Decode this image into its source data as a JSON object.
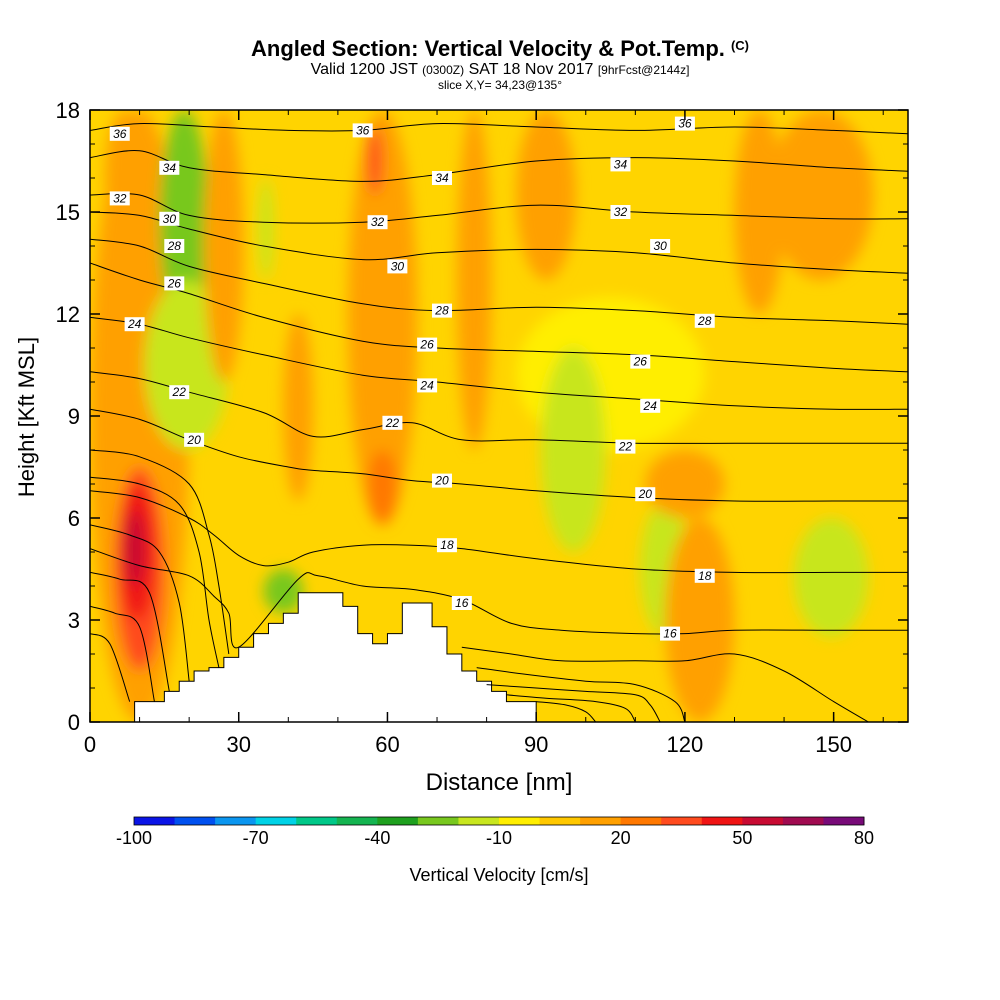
{
  "chart_data": {
    "type": "heatmap",
    "title": "Angled Section: Vertical Velocity & Pot.Temp.",
    "title_mark": "(C)",
    "subtitle_parts": [
      "Valid 1200 JST",
      "(0300Z)",
      "SAT 18 Nov 2017",
      "[9hrFcst@2144z]"
    ],
    "slice": "slice X,Y= 34,23@135°",
    "xlabel": "Distance [nm]",
    "ylabel": "Height [Kft MSL]",
    "xlim": [
      0,
      165
    ],
    "ylim": [
      0,
      18
    ],
    "xticks": [
      "0",
      "30",
      "60",
      "90",
      "120",
      "150"
    ],
    "yticks": [
      "0",
      "3",
      "6",
      "9",
      "12",
      "15",
      "18"
    ],
    "colorbar": {
      "label": "Vertical Velocity [cm/s]",
      "tick_labels": [
        "-100",
        "-70",
        "-40",
        "-10",
        "20",
        "50",
        "80"
      ],
      "colors": [
        "#0a14e6",
        "#0050f0",
        "#0a96f0",
        "#00d2e6",
        "#00c888",
        "#14b450",
        "#1ea01e",
        "#78c81e",
        "#c8e61e",
        "#ffee00",
        "#ffc800",
        "#ffa000",
        "#ff7800",
        "#ff4b1e",
        "#f01414",
        "#c80a32",
        "#a00a50",
        "#780a78"
      ],
      "cbar_ticks": [
        -100,
        -70,
        -40,
        -10,
        20,
        50,
        80
      ]
    },
    "background_color": "#ffd400",
    "velocity_regions": [
      {
        "value": 10,
        "x": [
          0,
          20
        ],
        "y": [
          0,
          18
        ]
      },
      {
        "value": 15,
        "x": [
          2,
          18
        ],
        "y": [
          1,
          9
        ]
      },
      {
        "value": 30,
        "x": [
          5,
          15
        ],
        "y": [
          1.5,
          7.5
        ]
      },
      {
        "value": 45,
        "x": [
          6,
          13
        ],
        "y": [
          3,
          7
        ]
      },
      {
        "value": 55,
        "x": [
          7,
          11
        ],
        "y": [
          4,
          6.2
        ]
      },
      {
        "value": 15,
        "x": [
          3,
          11
        ],
        "y": [
          14,
          18
        ]
      },
      {
        "value": -30,
        "x": [
          14,
          24
        ],
        "y": [
          11.5,
          18
        ]
      },
      {
        "value": -15,
        "x": [
          11,
          28
        ],
        "y": [
          8,
          13
        ]
      },
      {
        "value": -15,
        "x": [
          34,
          37
        ],
        "y": [
          13,
          16
        ]
      },
      {
        "value": -30,
        "x": [
          35,
          43
        ],
        "y": [
          3.2,
          4.5
        ]
      },
      {
        "value": 10,
        "x": [
          23,
          31
        ],
        "y": [
          10,
          18
        ]
      },
      {
        "value": 15,
        "x": [
          39,
          45
        ],
        "y": [
          6.5,
          12
        ]
      },
      {
        "value": 15,
        "x": [
          52,
          66
        ],
        "y": [
          5.8,
          18
        ]
      },
      {
        "value": 25,
        "x": [
          56,
          62
        ],
        "y": [
          5.8,
          8
        ]
      },
      {
        "value": 30,
        "x": [
          56,
          59
        ],
        "y": [
          15.5,
          17.5
        ]
      },
      {
        "value": 10,
        "x": [
          74,
          81
        ],
        "y": [
          8,
          18
        ]
      },
      {
        "value": -5,
        "x": [
          86,
          124
        ],
        "y": [
          8,
          12.5
        ]
      },
      {
        "value": -15,
        "x": [
          91,
          104
        ],
        "y": [
          5,
          11
        ]
      },
      {
        "value": -15,
        "x": [
          111,
          121
        ],
        "y": [
          2.5,
          6.5
        ]
      },
      {
        "value": -15,
        "x": [
          142,
          157
        ],
        "y": [
          2.5,
          6
        ]
      },
      {
        "value": 10,
        "x": [
          86,
          98
        ],
        "y": [
          13,
          18
        ]
      },
      {
        "value": 10,
        "x": [
          130,
          140
        ],
        "y": [
          12,
          18
        ]
      },
      {
        "value": 15,
        "x": [
          137,
          158
        ],
        "y": [
          13,
          18
        ]
      },
      {
        "value": 10,
        "x": [
          116,
          130
        ],
        "y": [
          0,
          6
        ]
      },
      {
        "value": 10,
        "x": [
          112,
          128
        ],
        "y": [
          6,
          8
        ]
      }
    ],
    "terrain": [
      [
        9,
        0
      ],
      [
        9,
        0.6
      ],
      [
        15,
        0.6
      ],
      [
        15,
        0.9
      ],
      [
        18,
        0.9
      ],
      [
        18,
        1.2
      ],
      [
        21,
        1.2
      ],
      [
        21,
        1.5
      ],
      [
        24,
        1.5
      ],
      [
        24,
        1.6
      ],
      [
        27,
        1.6
      ],
      [
        27,
        1.9
      ],
      [
        30,
        1.9
      ],
      [
        30,
        2.2
      ],
      [
        33,
        2.2
      ],
      [
        33,
        2.6
      ],
      [
        36,
        2.6
      ],
      [
        36,
        2.9
      ],
      [
        39,
        2.9
      ],
      [
        39,
        3.2
      ],
      [
        42,
        3.2
      ],
      [
        42,
        3.8
      ],
      [
        51,
        3.8
      ],
      [
        51,
        3.4
      ],
      [
        54,
        3.4
      ],
      [
        54,
        2.6
      ],
      [
        57,
        2.6
      ],
      [
        57,
        2.3
      ],
      [
        60,
        2.3
      ],
      [
        60,
        2.6
      ],
      [
        63,
        2.6
      ],
      [
        63,
        3.5
      ],
      [
        69,
        3.5
      ],
      [
        69,
        2.8
      ],
      [
        72,
        2.8
      ],
      [
        72,
        2.0
      ],
      [
        75,
        2.0
      ],
      [
        75,
        1.5
      ],
      [
        78,
        1.5
      ],
      [
        78,
        1.2
      ],
      [
        81,
        1.2
      ],
      [
        81,
        0.9
      ],
      [
        84,
        0.9
      ],
      [
        84,
        0.6
      ],
      [
        90,
        0.6
      ],
      [
        90,
        0
      ]
    ],
    "contours": [
      {
        "label": "36",
        "x": [
          0,
          10,
          25,
          40,
          55,
          70,
          90,
          110,
          130,
          150,
          165
        ],
        "y": [
          17.4,
          17.6,
          17.5,
          17.4,
          17.4,
          17.6,
          17.5,
          17.4,
          17.5,
          17.4,
          17.3
        ],
        "lbl": [
          [
            6,
            17.3
          ],
          [
            55,
            17.4
          ],
          [
            120,
            17.6
          ]
        ]
      },
      {
        "label": "34",
        "x": [
          0,
          10,
          20,
          35,
          55,
          70,
          90,
          110,
          130,
          150,
          165
        ],
        "y": [
          16.6,
          16.8,
          16.3,
          16.1,
          15.9,
          16.1,
          16.5,
          16.6,
          16.5,
          16.3,
          16.2
        ],
        "lbl": [
          [
            16,
            16.3
          ],
          [
            71,
            16.0
          ],
          [
            107,
            16.4
          ]
        ]
      },
      {
        "label": "32",
        "x": [
          0,
          10,
          20,
          35,
          55,
          70,
          90,
          110,
          130,
          150,
          165
        ],
        "y": [
          15.5,
          15.5,
          14.9,
          14.7,
          14.7,
          14.9,
          15.2,
          15.0,
          14.9,
          14.8,
          14.8
        ],
        "lbl": [
          [
            6,
            15.4
          ],
          [
            58,
            14.7
          ],
          [
            107,
            15.0
          ]
        ]
      },
      {
        "label": "30",
        "x": [
          0,
          10,
          20,
          35,
          55,
          70,
          90,
          110,
          130,
          150,
          165
        ],
        "y": [
          15.0,
          14.9,
          14.5,
          14.0,
          13.6,
          13.8,
          13.9,
          13.8,
          13.5,
          13.3,
          13.2
        ],
        "lbl": [
          [
            16,
            14.8
          ],
          [
            62,
            13.4
          ],
          [
            115,
            14.0
          ]
        ]
      },
      {
        "label": "28",
        "x": [
          0,
          10,
          20,
          35,
          55,
          70,
          90,
          110,
          130,
          150,
          165
        ],
        "y": [
          14.2,
          14.0,
          13.4,
          12.9,
          12.3,
          12.1,
          12.2,
          12.1,
          11.9,
          11.8,
          11.7
        ],
        "lbl": [
          [
            17,
            14.0
          ],
          [
            71,
            12.1
          ],
          [
            124,
            11.8
          ]
        ]
      },
      {
        "label": "26",
        "x": [
          0,
          10,
          20,
          35,
          55,
          70,
          90,
          110,
          130,
          150,
          165
        ],
        "y": [
          13.5,
          13.0,
          12.6,
          11.9,
          11.2,
          11.0,
          10.9,
          10.8,
          10.6,
          10.4,
          10.3
        ],
        "lbl": [
          [
            17,
            12.9
          ],
          [
            68,
            11.1
          ],
          [
            111,
            10.6
          ]
        ]
      },
      {
        "label": "24",
        "x": [
          0,
          10,
          20,
          35,
          55,
          70,
          90,
          110,
          130,
          150,
          165
        ],
        "y": [
          11.9,
          11.7,
          11.3,
          10.8,
          10.2,
          10.0,
          9.7,
          9.5,
          9.3,
          9.2,
          9.2
        ],
        "lbl": [
          [
            9,
            11.7
          ],
          [
            68,
            9.9
          ],
          [
            113,
            9.3
          ]
        ]
      },
      {
        "label": "22",
        "x": [
          0,
          10,
          20,
          35,
          45,
          55,
          65,
          75,
          90,
          110,
          130,
          150,
          165
        ],
        "y": [
          10.3,
          10.1,
          9.7,
          9.1,
          8.4,
          8.6,
          8.8,
          8.3,
          8.3,
          8.2,
          8.2,
          8.2,
          8.2
        ],
        "lbl": [
          [
            18,
            9.7
          ],
          [
            61,
            8.8
          ],
          [
            108,
            8.1
          ]
        ]
      },
      {
        "label": "20",
        "x": [
          0,
          10,
          20,
          30,
          40,
          45,
          55,
          65,
          75,
          90,
          110,
          130,
          150,
          165
        ],
        "y": [
          9.2,
          8.9,
          8.3,
          7.8,
          7.5,
          7.4,
          7.3,
          7.1,
          7.0,
          6.8,
          6.6,
          6.5,
          6.5,
          6.5
        ],
        "lbl": [
          [
            21,
            8.3
          ],
          [
            71,
            7.1
          ],
          [
            112,
            6.7
          ]
        ]
      },
      {
        "label": "18",
        "x": [
          0,
          10,
          20,
          25,
          30,
          35,
          40,
          45,
          55,
          65,
          75,
          90,
          110,
          130,
          150,
          165
        ],
        "y": [
          6.8,
          6.6,
          6.0,
          5.5,
          4.9,
          4.6,
          4.7,
          5.0,
          5.2,
          5.2,
          5.1,
          4.8,
          4.5,
          4.4,
          4.4,
          4.4
        ],
        "lbl": [
          [
            72,
            5.2
          ],
          [
            124,
            4.3
          ]
        ]
      },
      {
        "label": "16",
        "x": [
          0,
          10,
          20,
          25,
          28,
          30,
          42,
          46,
          55,
          65,
          75,
          85,
          95,
          110,
          120,
          130,
          150,
          165
        ],
        "y": [
          5.1,
          4.6,
          4.3,
          3.7,
          3.2,
          2.2,
          4.2,
          4.3,
          4.0,
          3.9,
          3.6,
          2.9,
          2.7,
          2.6,
          2.6,
          2.7,
          2.7,
          2.7
        ],
        "lbl": [
          [
            75,
            3.5
          ],
          [
            117,
            2.6
          ]
        ]
      }
    ],
    "extra_lines": [
      {
        "x": [
          0,
          10,
          20,
          24,
          26,
          28
        ],
        "y": [
          8.0,
          7.8,
          7.0,
          5.5,
          4.0,
          2.0
        ]
      },
      {
        "x": [
          0,
          10,
          18,
          22,
          24,
          26
        ],
        "y": [
          7.2,
          7.0,
          6.4,
          5.0,
          3.0,
          1.6
        ]
      },
      {
        "x": [
          0,
          8,
          14,
          18,
          20
        ],
        "y": [
          5.8,
          5.5,
          5.0,
          3.5,
          1.2
        ]
      },
      {
        "x": [
          0,
          6,
          12,
          16
        ],
        "y": [
          4.4,
          4.2,
          3.8,
          0.9
        ]
      },
      {
        "x": [
          0,
          5,
          10,
          13
        ],
        "y": [
          3.4,
          3.2,
          2.8,
          0.6
        ]
      },
      {
        "x": [
          0,
          4,
          8
        ],
        "y": [
          2.6,
          2.3,
          0.6
        ]
      },
      {
        "x": [
          75,
          85,
          95,
          110,
          120,
          130,
          140,
          150,
          157
        ],
        "y": [
          2.2,
          2.0,
          1.8,
          1.8,
          1.8,
          2.0,
          1.5,
          0.6,
          0
        ]
      },
      {
        "x": [
          78,
          88,
          100,
          110,
          118,
          120
        ],
        "y": [
          1.6,
          1.4,
          1.2,
          1.1,
          0.6,
          0
        ]
      },
      {
        "x": [
          80,
          90,
          100,
          110,
          113,
          115
        ],
        "y": [
          1.1,
          1.0,
          0.9,
          0.8,
          0.5,
          0
        ]
      },
      {
        "x": [
          84,
          92,
          102,
          108,
          110
        ],
        "y": [
          0.8,
          0.7,
          0.6,
          0.4,
          0
        ]
      },
      {
        "x": [
          90,
          96,
          100,
          102
        ],
        "y": [
          0.6,
          0.5,
          0.3,
          0
        ]
      }
    ]
  }
}
